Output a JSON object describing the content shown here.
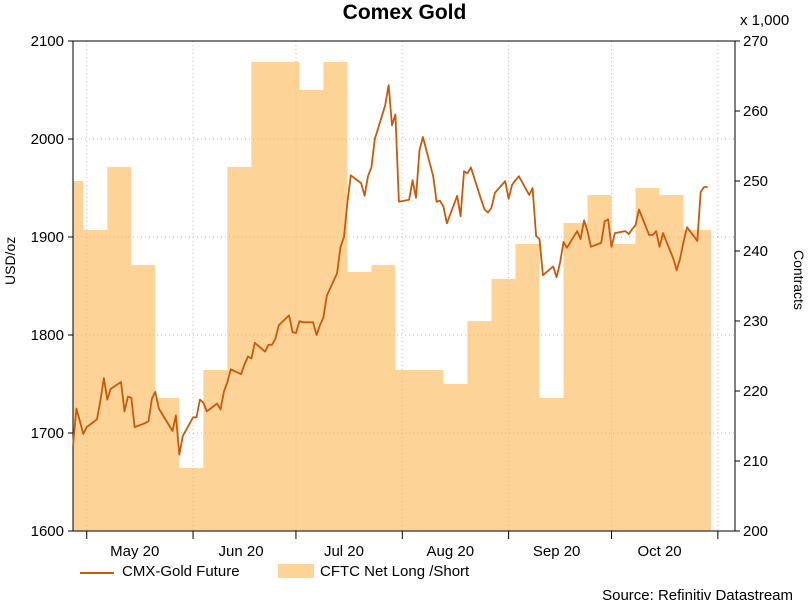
{
  "chart_data": {
    "type": "line",
    "title": "Comex Gold",
    "source": "Source: Refinitiv Datastream",
    "y_left": {
      "label": "USD/oz",
      "min": 1600,
      "max": 2100,
      "ticks": [
        1600,
        1700,
        1800,
        1900,
        2000,
        2100
      ]
    },
    "y_right": {
      "label": "Contracts",
      "scale_note": "x 1,000",
      "min": 200,
      "max": 270,
      "ticks": [
        200,
        210,
        220,
        230,
        240,
        250,
        260,
        270
      ]
    },
    "x_range": [
      "2020-04-27",
      "2020-11-06"
    ],
    "x_tick_labels": [
      {
        "label": "May 20",
        "date": "2020-05-15"
      },
      {
        "label": "Jun 20",
        "date": "2020-06-15"
      },
      {
        "label": "Jul 20",
        "date": "2020-07-15"
      },
      {
        "label": "Aug 20",
        "date": "2020-08-15"
      },
      {
        "label": "Sep 20",
        "date": "2020-09-15"
      },
      {
        "label": "Oct 20",
        "date": "2020-10-15"
      }
    ],
    "grid": true,
    "legend_position": "bottom-left",
    "series": [
      {
        "name": "CMX-Gold Future",
        "axis": "left",
        "color": "#c85a0c",
        "points": [
          [
            "2020-04-27",
            1687
          ],
          [
            "2020-04-28",
            1725
          ],
          [
            "2020-04-29",
            1712
          ],
          [
            "2020-04-30",
            1699
          ],
          [
            "2020-05-01",
            1706
          ],
          [
            "2020-05-04",
            1714
          ],
          [
            "2020-05-05",
            1733
          ],
          [
            "2020-05-06",
            1756
          ],
          [
            "2020-05-07",
            1734
          ],
          [
            "2020-05-08",
            1745
          ],
          [
            "2020-05-11",
            1752
          ],
          [
            "2020-05-12",
            1722
          ],
          [
            "2020-05-13",
            1737
          ],
          [
            "2020-05-14",
            1736
          ],
          [
            "2020-05-15",
            1706
          ],
          [
            "2020-05-18",
            1710
          ],
          [
            "2020-05-19",
            1712
          ],
          [
            "2020-05-20",
            1735
          ],
          [
            "2020-05-21",
            1742
          ],
          [
            "2020-05-22",
            1725
          ],
          [
            "2020-05-26",
            1702
          ],
          [
            "2020-05-27",
            1718
          ],
          [
            "2020-05-28",
            1678
          ],
          [
            "2020-05-29",
            1697
          ],
          [
            "2020-06-01",
            1716
          ],
          [
            "2020-06-02",
            1716
          ],
          [
            "2020-06-03",
            1734
          ],
          [
            "2020-06-04",
            1731
          ],
          [
            "2020-06-05",
            1722
          ],
          [
            "2020-06-08",
            1730
          ],
          [
            "2020-06-09",
            1724
          ],
          [
            "2020-06-10",
            1742
          ],
          [
            "2020-06-11",
            1752
          ],
          [
            "2020-06-12",
            1765
          ],
          [
            "2020-06-15",
            1760
          ],
          [
            "2020-06-16",
            1770
          ],
          [
            "2020-06-17",
            1778
          ],
          [
            "2020-06-18",
            1776
          ],
          [
            "2020-06-19",
            1792
          ],
          [
            "2020-06-22",
            1783
          ],
          [
            "2020-06-23",
            1790
          ],
          [
            "2020-06-24",
            1790
          ],
          [
            "2020-06-25",
            1796
          ],
          [
            "2020-06-26",
            1810
          ],
          [
            "2020-06-29",
            1820
          ],
          [
            "2020-06-30",
            1803
          ],
          [
            "2020-07-01",
            1802
          ],
          [
            "2020-07-02",
            1814
          ],
          [
            "2020-07-03",
            1813
          ],
          [
            "2020-07-06",
            1813
          ],
          [
            "2020-07-07",
            1800
          ],
          [
            "2020-07-08",
            1810
          ],
          [
            "2020-07-09",
            1818
          ],
          [
            "2020-07-10",
            1840
          ],
          [
            "2020-07-13",
            1863
          ],
          [
            "2020-07-14",
            1890
          ],
          [
            "2020-07-15",
            1900
          ],
          [
            "2020-07-16",
            1935
          ],
          [
            "2020-07-17",
            1963
          ],
          [
            "2020-07-20",
            1955
          ],
          [
            "2020-07-21",
            1942
          ],
          [
            "2020-07-22",
            1962
          ],
          [
            "2020-07-23",
            1971
          ],
          [
            "2020-07-24",
            2000
          ],
          [
            "2020-07-27",
            2034
          ],
          [
            "2020-07-28",
            2055
          ],
          [
            "2020-07-29",
            2014
          ],
          [
            "2020-07-30",
            2025
          ],
          [
            "2020-07-31",
            1936
          ],
          [
            "2020-08-03",
            1938
          ],
          [
            "2020-08-04",
            1958
          ],
          [
            "2020-08-05",
            1940
          ],
          [
            "2020-08-06",
            1988
          ],
          [
            "2020-08-07",
            2002
          ],
          [
            "2020-08-10",
            1962
          ],
          [
            "2020-08-11",
            1936
          ],
          [
            "2020-08-12",
            1937
          ],
          [
            "2020-08-13",
            1931
          ],
          [
            "2020-08-14",
            1914
          ],
          [
            "2020-08-17",
            1942
          ],
          [
            "2020-08-18",
            1921
          ],
          [
            "2020-08-19",
            1967
          ],
          [
            "2020-08-20",
            1965
          ],
          [
            "2020-08-21",
            1971
          ],
          [
            "2020-08-24",
            1938
          ],
          [
            "2020-08-25",
            1928
          ],
          [
            "2020-08-26",
            1925
          ],
          [
            "2020-08-27",
            1930
          ],
          [
            "2020-08-28",
            1945
          ],
          [
            "2020-08-31",
            1957
          ],
          [
            "2020-09-01",
            1939
          ],
          [
            "2020-09-02",
            1953
          ],
          [
            "2020-09-03",
            1958
          ],
          [
            "2020-09-04",
            1962
          ],
          [
            "2020-09-07",
            1943
          ],
          [
            "2020-09-08",
            1950
          ],
          [
            "2020-09-09",
            1901
          ],
          [
            "2020-09-10",
            1898
          ],
          [
            "2020-09-11",
            1861
          ],
          [
            "2020-09-14",
            1870
          ],
          [
            "2020-09-15",
            1859
          ],
          [
            "2020-09-16",
            1874
          ],
          [
            "2020-09-17",
            1895
          ],
          [
            "2020-09-18",
            1889
          ],
          [
            "2020-09-21",
            1906
          ],
          [
            "2020-09-22",
            1898
          ],
          [
            "2020-09-23",
            1917
          ],
          [
            "2020-09-24",
            1906
          ],
          [
            "2020-09-25",
            1890
          ],
          [
            "2020-09-28",
            1894
          ],
          [
            "2020-09-29",
            1916
          ],
          [
            "2020-09-30",
            1918
          ],
          [
            "2020-10-01",
            1890
          ],
          [
            "2020-10-02",
            1904
          ],
          [
            "2020-10-05",
            1906
          ],
          [
            "2020-10-06",
            1903
          ],
          [
            "2020-10-07",
            1908
          ],
          [
            "2020-10-08",
            1912
          ],
          [
            "2020-10-09",
            1928
          ],
          [
            "2020-10-12",
            1902
          ],
          [
            "2020-10-13",
            1902
          ],
          [
            "2020-10-14",
            1906
          ],
          [
            "2020-10-15",
            1890
          ],
          [
            "2020-10-16",
            1904
          ],
          [
            "2020-10-19",
            1878
          ],
          [
            "2020-10-20",
            1866
          ],
          [
            "2020-10-21",
            1878
          ],
          [
            "2020-10-22",
            1895
          ],
          [
            "2020-10-23",
            1910
          ],
          [
            "2020-10-26",
            1896
          ],
          [
            "2020-10-27",
            1946
          ],
          [
            "2020-10-28",
            1951
          ],
          [
            "2020-10-29",
            1951
          ]
        ]
      },
      {
        "name": "CFTC Net Long /Short",
        "axis": "right",
        "color": "#fdd398",
        "type": "area",
        "steps": [
          [
            "2020-04-27",
            250
          ],
          [
            "2020-04-30",
            243
          ],
          [
            "2020-05-07",
            252
          ],
          [
            "2020-05-14",
            238
          ],
          [
            "2020-05-21",
            219
          ],
          [
            "2020-05-28",
            209
          ],
          [
            "2020-06-04",
            223
          ],
          [
            "2020-06-11",
            252
          ],
          [
            "2020-06-18",
            267
          ],
          [
            "2020-06-25",
            267
          ],
          [
            "2020-07-02",
            263
          ],
          [
            "2020-07-09",
            267
          ],
          [
            "2020-07-16",
            237
          ],
          [
            "2020-07-23",
            238
          ],
          [
            "2020-07-30",
            223
          ],
          [
            "2020-08-06",
            223
          ],
          [
            "2020-08-13",
            221
          ],
          [
            "2020-08-20",
            230
          ],
          [
            "2020-08-27",
            236
          ],
          [
            "2020-09-03",
            241
          ],
          [
            "2020-09-10",
            219
          ],
          [
            "2020-09-17",
            244
          ],
          [
            "2020-09-24",
            248
          ],
          [
            "2020-10-01",
            241
          ],
          [
            "2020-10-08",
            249
          ],
          [
            "2020-10-15",
            248
          ],
          [
            "2020-10-22",
            243
          ],
          [
            "2020-10-29",
            243
          ]
        ],
        "end_date": "2020-10-30"
      }
    ]
  }
}
